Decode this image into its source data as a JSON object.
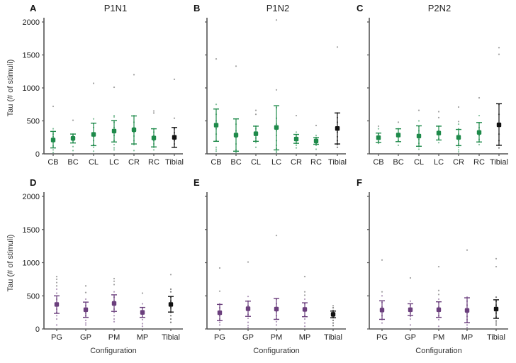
{
  "figure": {
    "ylabel": "Tau (# of stimuli)",
    "xlabel": "Configuration",
    "colors": {
      "green": "#1e8a4a",
      "purple": "#6b3f7d",
      "black": "#111111",
      "outlier": "#8a8a8a",
      "axis": "#555555"
    }
  },
  "chart_data": [
    {
      "type": "scatter",
      "panel": "A",
      "title": "P1N1",
      "xlabel": "",
      "ylabel": "Tau (# of stimuli)",
      "ylim": [
        0,
        2000
      ],
      "yticks": [
        "0",
        "500",
        "1000",
        "1500",
        "2000"
      ],
      "categories": [
        "CB",
        "BC",
        "CL",
        "LC",
        "CR",
        "RC",
        "Tibial"
      ],
      "series": [
        {
          "name": "mean",
          "values": [
            210,
            235,
            295,
            345,
            365,
            240,
            250
          ]
        },
        {
          "name": "error_low",
          "values": [
            90,
            165,
            125,
            180,
            150,
            105,
            100
          ]
        },
        {
          "name": "error_high",
          "values": [
            340,
            300,
            465,
            505,
            575,
            380,
            400
          ]
        }
      ],
      "points": [
        [
          720,
          380,
          340,
          300,
          260,
          230,
          180,
          120,
          60,
          20
        ],
        [
          510,
          300,
          280,
          250,
          200,
          170,
          110,
          50
        ],
        [
          1070,
          530,
          460,
          400,
          320,
          260,
          200,
          140,
          100,
          40
        ],
        [
          1010,
          580,
          560,
          480,
          400,
          330,
          280,
          200,
          140,
          90,
          60
        ],
        [
          1200,
          580,
          480,
          400,
          330,
          270,
          200,
          140,
          50
        ],
        [
          650,
          620,
          380,
          330,
          280,
          200,
          150,
          100,
          60
        ],
        [
          1130,
          540,
          380,
          320,
          260,
          200,
          150,
          100
        ]
      ],
      "colors": [
        "green",
        "green",
        "green",
        "green",
        "green",
        "green",
        "black"
      ]
    },
    {
      "type": "scatter",
      "panel": "B",
      "title": "P1N2",
      "xlabel": "",
      "ylabel": "",
      "ylim": [
        0,
        2000
      ],
      "categories": [
        "CB",
        "BC",
        "CL",
        "LC",
        "CR",
        "RC",
        "Tibial"
      ],
      "series": [
        {
          "name": "mean",
          "values": [
            435,
            285,
            305,
            400,
            225,
            195,
            385
          ]
        },
        {
          "name": "error_low",
          "values": [
            190,
            40,
            190,
            60,
            160,
            145,
            150
          ]
        },
        {
          "name": "error_high",
          "values": [
            680,
            530,
            420,
            730,
            295,
            245,
            620
          ]
        }
      ],
      "points": [
        [
          1440,
          750,
          600,
          500,
          380,
          300,
          200,
          100,
          70,
          40
        ],
        [
          1330,
          450,
          350,
          250,
          150,
          60,
          20
        ],
        [
          660,
          600,
          420,
          380,
          320,
          240,
          200,
          170,
          100
        ],
        [
          2030,
          970,
          700,
          540,
          450,
          350,
          280,
          200,
          130,
          80,
          40,
          20
        ],
        [
          580,
          330,
          290,
          250,
          200,
          160,
          130,
          90
        ],
        [
          430,
          280,
          250,
          220,
          190,
          160,
          130,
          70
        ],
        [
          1620,
          620,
          550,
          480,
          400,
          330,
          260,
          200,
          140,
          100
        ]
      ],
      "colors": [
        "green",
        "green",
        "green",
        "green",
        "green",
        "green",
        "black"
      ]
    },
    {
      "type": "scatter",
      "panel": "C",
      "title": "P2N2",
      "xlabel": "",
      "ylabel": "",
      "ylim": [
        0,
        2000
      ],
      "categories": [
        "CB",
        "BC",
        "CL",
        "LC",
        "CR",
        "RC",
        "Tibial"
      ],
      "series": [
        {
          "name": "mean",
          "values": [
            245,
            285,
            270,
            315,
            250,
            325,
            440
          ]
        },
        {
          "name": "error_low",
          "values": [
            175,
            185,
            115,
            210,
            125,
            180,
            130
          ]
        },
        {
          "name": "error_high",
          "values": [
            315,
            380,
            425,
            420,
            370,
            475,
            760
          ]
        }
      ],
      "points": [
        [
          420,
          380,
          300,
          260,
          220,
          190,
          160
        ],
        [
          480,
          380,
          300,
          260,
          200,
          130
        ],
        [
          660,
          500,
          420,
          350,
          280,
          220,
          160,
          110,
          70
        ],
        [
          640,
          550,
          420,
          350,
          290,
          230,
          170
        ],
        [
          710,
          490,
          450,
          380,
          300,
          250,
          200,
          150,
          100,
          60,
          30
        ],
        [
          850,
          580,
          470,
          400,
          350,
          280,
          220,
          180,
          140
        ],
        [
          1610,
          1510,
          750,
          600,
          450,
          300,
          200,
          130,
          90
        ]
      ],
      "colors": [
        "green",
        "green",
        "green",
        "green",
        "green",
        "green",
        "black"
      ]
    },
    {
      "type": "scatter",
      "panel": "D",
      "title": "",
      "xlabel": "Configuration",
      "ylabel": "Tau (# of stimuli)",
      "ylim": [
        0,
        2000
      ],
      "yticks": [
        "0",
        "500",
        "1000",
        "1500",
        "2000"
      ],
      "categories": [
        "PG",
        "GP",
        "PM",
        "MP",
        "Tibial"
      ],
      "series": [
        {
          "name": "mean",
          "values": [
            370,
            290,
            385,
            250,
            370
          ]
        },
        {
          "name": "error_low",
          "values": [
            235,
            175,
            265,
            175,
            255
          ]
        },
        {
          "name": "error_high",
          "values": [
            500,
            405,
            515,
            325,
            490
          ]
        }
      ],
      "points": [
        [
          790,
          750,
          700,
          650,
          600,
          540,
          450,
          380,
          300,
          250,
          200,
          150,
          60
        ],
        [
          650,
          550,
          450,
          350,
          280,
          240,
          200,
          130,
          90,
          60
        ],
        [
          760,
          720,
          670,
          560,
          480,
          420,
          360,
          300,
          250,
          200,
          150,
          110
        ],
        [
          540,
          380,
          320,
          260,
          220,
          180,
          140,
          80,
          40
        ],
        [
          820,
          600,
          560,
          480,
          420,
          370,
          320,
          250,
          200,
          150,
          100
        ]
      ],
      "colors": [
        "purple",
        "purple",
        "purple",
        "purple",
        "black"
      ]
    },
    {
      "type": "scatter",
      "panel": "E",
      "title": "",
      "xlabel": "Configuration",
      "ylabel": "",
      "ylim": [
        0,
        2000
      ],
      "categories": [
        "PG",
        "GP",
        "PM",
        "MP",
        "Tibial"
      ],
      "series": [
        {
          "name": "mean",
          "values": [
            245,
            305,
            300,
            295,
            220
          ]
        },
        {
          "name": "error_low",
          "values": [
            125,
            190,
            145,
            185,
            170
          ]
        },
        {
          "name": "error_high",
          "values": [
            370,
            420,
            460,
            395,
            270
          ]
        }
      ],
      "points": [
        [
          920,
          570,
          380,
          320,
          260,
          200,
          150,
          100,
          60
        ],
        [
          1010,
          490,
          420,
          350,
          280,
          220,
          160,
          100,
          50,
          20
        ],
        [
          1410,
          450,
          380,
          320,
          260,
          200,
          150,
          110,
          60
        ],
        [
          790,
          560,
          510,
          450,
          380,
          320,
          270,
          200,
          150,
          90,
          40
        ],
        [
          350,
          320,
          280,
          250,
          210,
          170,
          130,
          90,
          50
        ]
      ],
      "colors": [
        "purple",
        "purple",
        "purple",
        "purple",
        "black"
      ]
    },
    {
      "type": "scatter",
      "panel": "F",
      "title": "",
      "xlabel": "Configuration",
      "ylabel": "",
      "ylim": [
        0,
        2000
      ],
      "categories": [
        "PG",
        "GP",
        "PM",
        "MP",
        "Tibial"
      ],
      "series": [
        {
          "name": "mean",
          "values": [
            285,
            290,
            290,
            280,
            300
          ]
        },
        {
          "name": "error_low",
          "values": [
            145,
            205,
            175,
            95,
            160
          ]
        },
        {
          "name": "error_high",
          "values": [
            425,
            380,
            410,
            470,
            440
          ]
        }
      ],
      "points": [
        [
          1040,
          560,
          500,
          400,
          330,
          260,
          200,
          140,
          90
        ],
        [
          770,
          420,
          360,
          300,
          240,
          190,
          150,
          60
        ],
        [
          940,
          580,
          520,
          450,
          400,
          330,
          270,
          200,
          140,
          40
        ],
        [
          1190,
          480,
          420,
          360,
          300,
          240,
          190,
          140,
          100,
          60,
          20
        ],
        [
          1060,
          940,
          480,
          420,
          360,
          300,
          240,
          180,
          120,
          90,
          60
        ]
      ],
      "colors": [
        "purple",
        "purple",
        "purple",
        "purple",
        "black"
      ]
    }
  ]
}
